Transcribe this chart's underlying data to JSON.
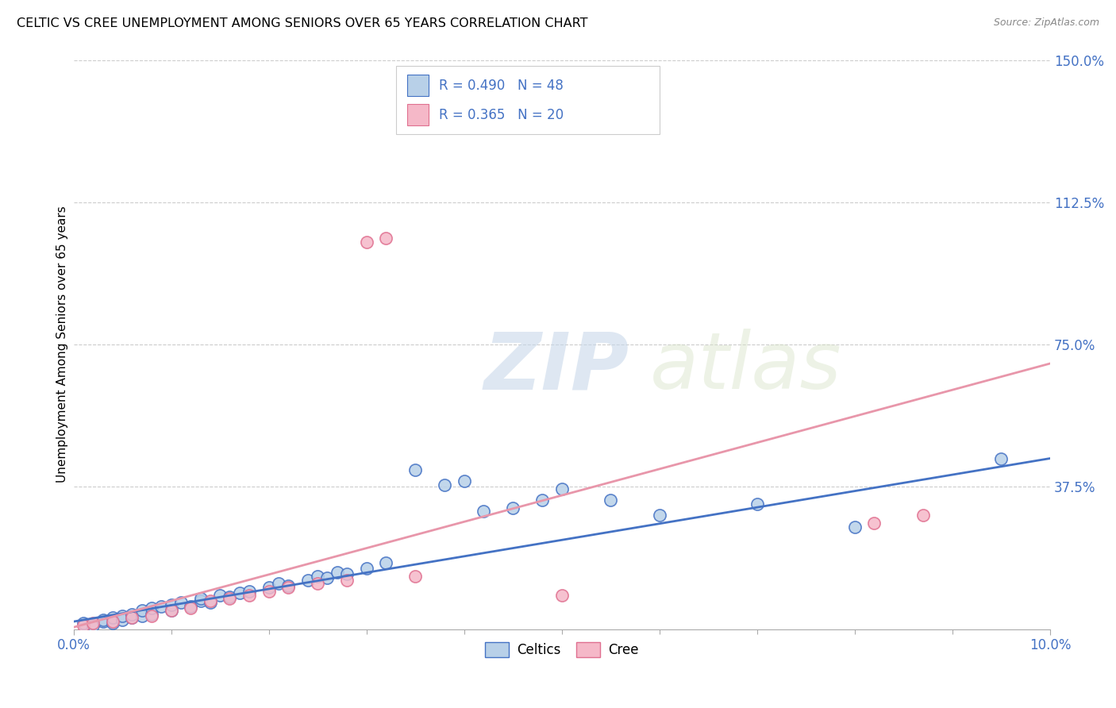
{
  "title": "CELTIC VS CREE UNEMPLOYMENT AMONG SENIORS OVER 65 YEARS CORRELATION CHART",
  "source": "Source: ZipAtlas.com",
  "ylabel": "Unemployment Among Seniors over 65 years",
  "xlim": [
    0.0,
    0.1
  ],
  "ylim": [
    0.0,
    1.5
  ],
  "xtick_labels": [
    "0.0%",
    "10.0%"
  ],
  "ytick_labels": [
    "37.5%",
    "75.0%",
    "112.5%",
    "150.0%"
  ],
  "ytick_values": [
    0.375,
    0.75,
    1.125,
    1.5
  ],
  "legend_label1": "Celtics",
  "legend_label2": "Cree",
  "legend_R1": "R = 0.490",
  "legend_N1": "N = 48",
  "legend_R2": "R = 0.365",
  "legend_N2": "N = 20",
  "celtic_face_color": "#b8d0e8",
  "cree_face_color": "#f5b8c8",
  "celtic_edge_color": "#4472c4",
  "cree_edge_color": "#e07090",
  "celtic_line_color": "#4472c4",
  "cree_line_color": "#e896aa",
  "background_color": "#ffffff",
  "watermark_zip": "ZIP",
  "watermark_atlas": "atlas",
  "celtics_x": [
    0.001,
    0.002,
    0.003,
    0.003,
    0.004,
    0.004,
    0.005,
    0.005,
    0.006,
    0.006,
    0.007,
    0.007,
    0.008,
    0.008,
    0.009,
    0.01,
    0.01,
    0.011,
    0.012,
    0.013,
    0.013,
    0.014,
    0.015,
    0.016,
    0.017,
    0.018,
    0.02,
    0.021,
    0.022,
    0.024,
    0.025,
    0.026,
    0.027,
    0.028,
    0.03,
    0.032,
    0.035,
    0.038,
    0.04,
    0.042,
    0.045,
    0.048,
    0.05,
    0.055,
    0.06,
    0.07,
    0.08,
    0.095
  ],
  "celtics_y": [
    0.015,
    0.01,
    0.02,
    0.025,
    0.015,
    0.03,
    0.025,
    0.035,
    0.03,
    0.04,
    0.035,
    0.05,
    0.04,
    0.055,
    0.06,
    0.05,
    0.065,
    0.07,
    0.06,
    0.075,
    0.08,
    0.07,
    0.09,
    0.085,
    0.095,
    0.1,
    0.11,
    0.12,
    0.115,
    0.13,
    0.14,
    0.135,
    0.15,
    0.145,
    0.16,
    0.175,
    0.42,
    0.38,
    0.39,
    0.31,
    0.32,
    0.34,
    0.37,
    0.34,
    0.3,
    0.33,
    0.27,
    0.45
  ],
  "cree_x": [
    0.001,
    0.002,
    0.004,
    0.006,
    0.008,
    0.01,
    0.012,
    0.014,
    0.016,
    0.018,
    0.02,
    0.022,
    0.025,
    0.028,
    0.03,
    0.032,
    0.035,
    0.05,
    0.082,
    0.087
  ],
  "cree_y": [
    0.01,
    0.015,
    0.02,
    0.03,
    0.035,
    0.05,
    0.055,
    0.075,
    0.08,
    0.09,
    0.1,
    0.11,
    0.12,
    0.13,
    1.02,
    1.03,
    0.14,
    0.09,
    0.28,
    0.3
  ],
  "celtic_trend_x": [
    0.0,
    0.1
  ],
  "celtic_trend_y": [
    0.02,
    0.45
  ],
  "cree_trend_x": [
    0.0,
    0.1
  ],
  "cree_trend_y": [
    0.005,
    0.7
  ]
}
